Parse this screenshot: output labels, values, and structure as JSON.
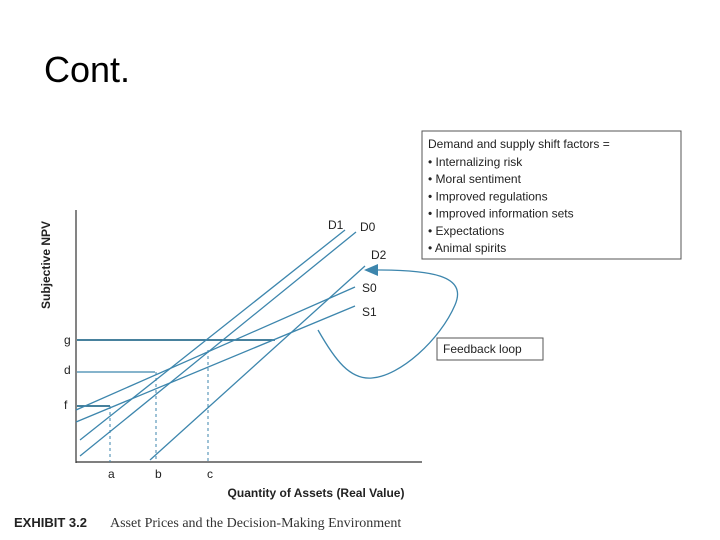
{
  "slide": {
    "title": "Cont."
  },
  "figure": {
    "y_axis_label": "Subjective NPV",
    "x_axis_label": "Quantity of Assets (Real Value)",
    "y_levels": [
      "g",
      "d",
      "f"
    ],
    "x_levels": [
      "a",
      "b",
      "c"
    ],
    "curves": [
      "D1",
      "D0",
      "D2",
      "S0",
      "S1"
    ],
    "factors_box": {
      "heading": "Demand and supply shift factors =",
      "items": [
        "• Internalizing risk",
        "• Moral sentiment",
        "• Improved regulations",
        "• Improved information sets",
        "• Expectations",
        "• Animal spirits"
      ]
    },
    "feedback_label": "Feedback loop",
    "caption": {
      "exhibit": "EXHIBIT 3.2",
      "text": "Asset Prices and the Decision-Making Environment"
    }
  }
}
